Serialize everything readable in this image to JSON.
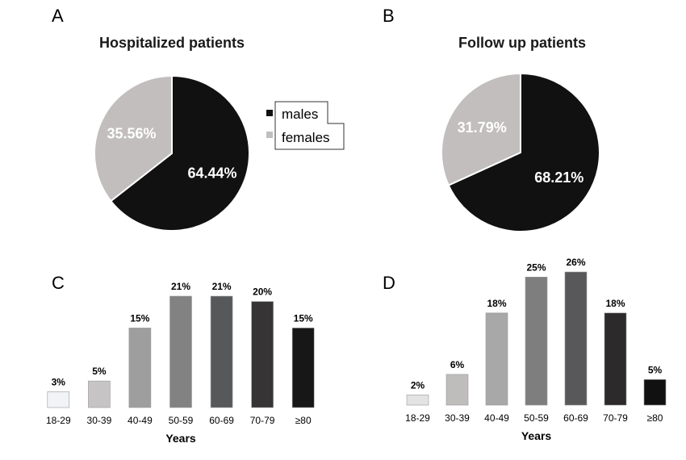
{
  "colors": {
    "males": "#111111",
    "females": "#c1bebd",
    "legend_border": "#333333"
  },
  "legend": {
    "items": [
      "males",
      "females"
    ]
  },
  "chart_data": [
    {
      "panel": "A",
      "type": "pie",
      "title": "Hospitalized patients",
      "slices": [
        {
          "name": "males",
          "value": 64.44,
          "label": "64.44%",
          "color": "#111111"
        },
        {
          "name": "females",
          "value": 35.56,
          "label": "35.56%",
          "color": "#c1bebd"
        }
      ]
    },
    {
      "panel": "B",
      "type": "pie",
      "title": "Follow up patients",
      "slices": [
        {
          "name": "males",
          "value": 68.21,
          "label": "68.21%",
          "color": "#111111"
        },
        {
          "name": "females",
          "value": 31.79,
          "label": "31.79%",
          "color": "#c1bebd"
        }
      ]
    },
    {
      "panel": "C",
      "type": "bar",
      "categories": [
        "18-29",
        "30-39",
        "40-49",
        "50-59",
        "60-69",
        "70-79",
        "≥80"
      ],
      "values": [
        3,
        5,
        15,
        21,
        21,
        20,
        15
      ],
      "labels": [
        "3%",
        "5%",
        "15%",
        "21%",
        "21%",
        "20%",
        "15%"
      ],
      "colors": [
        "#f1f3f6",
        "#c6c4c4",
        "#9e9e9e",
        "#828282",
        "#57585a",
        "#373435",
        "#171717"
      ],
      "xlabel": "Years",
      "ylim": [
        0,
        21
      ]
    },
    {
      "panel": "D",
      "type": "bar",
      "categories": [
        "18-29",
        "30-39",
        "40-49",
        "50-59",
        "60-69",
        "70-79",
        "≥80"
      ],
      "values": [
        2,
        6,
        18,
        25,
        26,
        18,
        5
      ],
      "labels": [
        "2%",
        "6%",
        "18%",
        "25%",
        "26%",
        "18%",
        "5%"
      ],
      "colors": [
        "#e3e3e3",
        "#bfbcbc",
        "#a8a8a8",
        "#7e7e7e",
        "#58585a",
        "#2c2a2b",
        "#111111"
      ],
      "xlabel": "Years",
      "ylim": [
        0,
        26
      ]
    }
  ]
}
